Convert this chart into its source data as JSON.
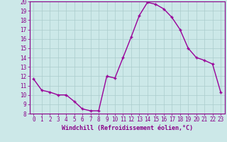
{
  "hours": [
    0,
    1,
    2,
    3,
    4,
    5,
    6,
    7,
    8,
    9,
    10,
    11,
    12,
    13,
    14,
    15,
    16,
    17,
    18,
    19,
    20,
    21,
    22,
    23
  ],
  "values": [
    11.7,
    10.5,
    10.3,
    10.0,
    10.0,
    9.3,
    8.5,
    8.3,
    8.3,
    12.0,
    11.8,
    14.0,
    16.2,
    18.5,
    19.9,
    19.7,
    19.2,
    18.3,
    17.0,
    15.0,
    14.0,
    13.7,
    13.3,
    10.3
  ],
  "line_color": "#990099",
  "marker": "+",
  "bg_color": "#cce8e8",
  "grid_color": "#aacccc",
  "xlabel": "Windchill (Refroidissement éolien,°C)",
  "ylim": [
    8,
    20
  ],
  "xlim": [
    -0.5,
    23.5
  ],
  "yticks": [
    8,
    9,
    10,
    11,
    12,
    13,
    14,
    15,
    16,
    17,
    18,
    19,
    20
  ],
  "xticks": [
    0,
    1,
    2,
    3,
    4,
    5,
    6,
    7,
    8,
    9,
    10,
    11,
    12,
    13,
    14,
    15,
    16,
    17,
    18,
    19,
    20,
    21,
    22,
    23
  ],
  "tick_label_color": "#880088",
  "axis_label_color": "#880088",
  "spine_color": "#880088",
  "font_family": "monospace",
  "tick_fontsize": 5.5,
  "xlabel_fontsize": 6.0,
  "linewidth": 1.0,
  "markersize": 3.5,
  "markeredgewidth": 1.0
}
